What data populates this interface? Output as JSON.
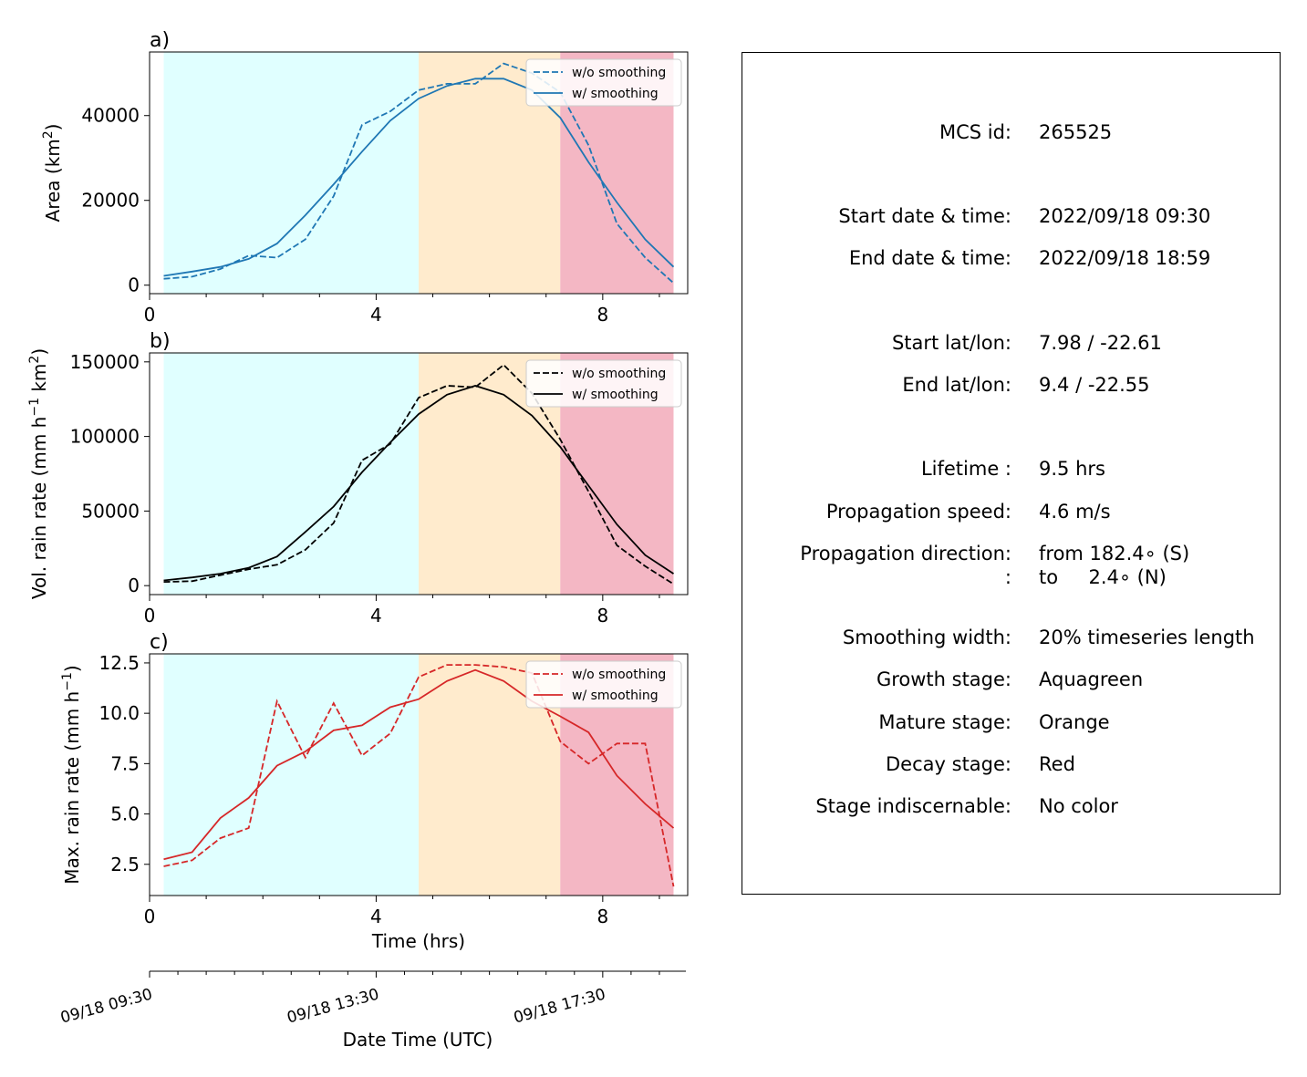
{
  "chart_data": [
    {
      "type": "line",
      "panel_label": "a)",
      "ylabel": "Area  (km",
      "ylabel_sup": "2",
      "ylabel_end": ")",
      "xlim": [
        0,
        9.5
      ],
      "ylim": [
        -2000,
        55000
      ],
      "yticks": [
        0,
        20000,
        40000
      ],
      "ytick_labels": [
        "0",
        "20000",
        "40000"
      ],
      "xticks": [
        0,
        4,
        8
      ],
      "xtick_labels": [
        "0",
        "4",
        "8"
      ],
      "color": "#1f77b4",
      "legend": "top-right",
      "stages": [
        {
          "name": "growth",
          "start": 0.25,
          "end": 4.75,
          "color": "#e0ffff"
        },
        {
          "name": "mature",
          "start": 4.75,
          "end": 7.25,
          "color": "#ffebcd"
        },
        {
          "name": "decay",
          "start": 7.25,
          "end": 9.25,
          "color": "#f4b7c4"
        }
      ],
      "series": [
        {
          "name": "w/o smoothing",
          "style": "dashed",
          "x": [
            0.25,
            0.75,
            1.25,
            1.75,
            2.25,
            2.75,
            3.25,
            3.75,
            4.25,
            4.75,
            5.25,
            5.75,
            6.25,
            6.75,
            7.25,
            7.75,
            8.25,
            8.75,
            9.25
          ],
          "values": [
            1500,
            2000,
            3800,
            7000,
            6500,
            10800,
            21000,
            37800,
            41000,
            46000,
            47500,
            47500,
            52300,
            50000,
            45500,
            33000,
            14500,
            6500,
            500
          ]
        },
        {
          "name": "w/ smoothing",
          "style": "solid",
          "x": [
            0.25,
            0.75,
            1.25,
            1.75,
            2.25,
            2.75,
            3.25,
            3.75,
            4.25,
            4.75,
            5.25,
            5.75,
            6.25,
            6.75,
            7.25,
            7.75,
            8.25,
            8.75,
            9.25
          ],
          "values": [
            2200,
            3200,
            4300,
            6200,
            9800,
            16500,
            23800,
            31500,
            38800,
            44000,
            47000,
            48700,
            48700,
            46000,
            39500,
            29000,
            19500,
            10800,
            4300
          ]
        }
      ]
    },
    {
      "type": "line",
      "panel_label": "b)",
      "ylabel": "Vol. rain rate (mm h",
      "ylabel_sup": "−1",
      "ylabel_mid": " km",
      "ylabel_sup2": "2",
      "ylabel_end": ")",
      "xlim": [
        0,
        9.5
      ],
      "ylim": [
        -6000,
        156000
      ],
      "yticks": [
        0,
        50000,
        100000,
        150000
      ],
      "ytick_labels": [
        "0",
        "50000",
        "100000",
        "150000"
      ],
      "xticks": [
        0,
        4,
        8
      ],
      "xtick_labels": [
        "0",
        "4",
        "8"
      ],
      "color": "#000000",
      "legend": "top-right",
      "stages": [
        {
          "name": "growth",
          "start": 0.25,
          "end": 4.75,
          "color": "#e0ffff"
        },
        {
          "name": "mature",
          "start": 4.75,
          "end": 7.25,
          "color": "#ffebcd"
        },
        {
          "name": "decay",
          "start": 7.25,
          "end": 9.25,
          "color": "#f4b7c4"
        }
      ],
      "series": [
        {
          "name": "w/o smoothing",
          "style": "dashed",
          "x": [
            0.25,
            0.75,
            1.25,
            1.75,
            2.25,
            2.75,
            3.25,
            3.75,
            4.25,
            4.75,
            5.25,
            5.75,
            6.25,
            6.75,
            7.25,
            7.75,
            8.25,
            8.75,
            9.25
          ],
          "values": [
            2500,
            3000,
            7000,
            11000,
            14000,
            24000,
            42000,
            84000,
            95000,
            126000,
            134000,
            133000,
            148000,
            129000,
            98000,
            63000,
            27000,
            13000,
            1000
          ]
        },
        {
          "name": "w/ smoothing",
          "style": "solid",
          "x": [
            0.25,
            0.75,
            1.25,
            1.75,
            2.25,
            2.75,
            3.25,
            3.75,
            4.25,
            4.75,
            5.25,
            5.75,
            6.25,
            6.75,
            7.25,
            7.75,
            8.25,
            8.75,
            9.25
          ],
          "values": [
            3500,
            5500,
            8000,
            12000,
            19500,
            36000,
            53000,
            76000,
            96000,
            115000,
            128000,
            134000,
            128000,
            114000,
            93000,
            67000,
            41000,
            20500,
            8000
          ]
        }
      ]
    },
    {
      "type": "line",
      "panel_label": "c)",
      "ylabel": "Max. rain rate  (mm h",
      "ylabel_sup": "−1",
      "ylabel_end": ")",
      "xlabel": "Time (hrs)",
      "xlim": [
        0,
        9.5
      ],
      "ylim": [
        0.95,
        12.95
      ],
      "yticks": [
        2.5,
        5.0,
        7.5,
        10.0,
        12.5
      ],
      "ytick_labels": [
        "2.5",
        "5.0",
        "7.5",
        "10.0",
        "12.5"
      ],
      "xticks": [
        0,
        4,
        8
      ],
      "xtick_labels": [
        "0",
        "4",
        "8"
      ],
      "color": "#d62728",
      "legend": "top-right",
      "stages": [
        {
          "name": "growth",
          "start": 0.25,
          "end": 4.75,
          "color": "#e0ffff"
        },
        {
          "name": "mature",
          "start": 4.75,
          "end": 7.25,
          "color": "#ffebcd"
        },
        {
          "name": "decay",
          "start": 7.25,
          "end": 9.25,
          "color": "#f4b7c4"
        }
      ],
      "series": [
        {
          "name": "w/o smoothing",
          "style": "dashed",
          "x": [
            0.25,
            0.75,
            1.25,
            1.75,
            2.25,
            2.75,
            3.25,
            3.75,
            4.25,
            4.75,
            5.25,
            5.75,
            6.25,
            6.75,
            7.25,
            7.75,
            8.25,
            8.75,
            9.25
          ],
          "values": [
            2.4,
            2.7,
            3.8,
            4.3,
            10.6,
            7.8,
            10.5,
            7.9,
            9.0,
            11.8,
            12.4,
            12.4,
            12.3,
            12.0,
            8.6,
            7.5,
            8.5,
            8.5,
            1.4
          ]
        },
        {
          "name": "w/ smoothing",
          "style": "solid",
          "x": [
            0.25,
            0.75,
            1.25,
            1.75,
            2.25,
            2.75,
            3.25,
            3.75,
            4.25,
            4.75,
            5.25,
            5.75,
            6.25,
            6.75,
            7.25,
            7.75,
            8.25,
            8.75,
            9.25
          ],
          "values": [
            2.75,
            3.1,
            4.8,
            5.8,
            7.4,
            8.1,
            9.15,
            9.4,
            10.3,
            10.7,
            11.6,
            12.15,
            11.6,
            10.6,
            9.85,
            9.05,
            6.9,
            5.5,
            4.3
          ]
        }
      ]
    }
  ],
  "datetime_axis": {
    "label": "Date Time (UTC)",
    "ticks": [
      {
        "hours": 0,
        "label": "09/18 09:30"
      },
      {
        "hours": 4,
        "label": "09/18 13:30"
      },
      {
        "hours": 8,
        "label": "09/18 17:30"
      }
    ],
    "minor_ticks_hours": [
      0.5,
      1,
      1.5,
      2,
      2.5,
      3,
      3.5,
      4.5,
      5,
      5.5,
      6,
      6.5,
      7,
      7.5,
      8.5,
      9,
      9.5
    ]
  },
  "info": {
    "rows": [
      {
        "key": "mcs-id",
        "label": "MCS id:",
        "value": "265525"
      },
      {
        "key": "start-datetime",
        "label": "Start date & time:",
        "value": "2022/09/18 09:30"
      },
      {
        "key": "end-datetime",
        "label": "End date & time:",
        "value": "2022/09/18 18:59"
      },
      {
        "key": "start-latlon",
        "label": "Start lat/lon:",
        "value": "7.98 / -22.61"
      },
      {
        "key": "end-latlon",
        "label": "End lat/lon:",
        "value": "9.4 / -22.55"
      },
      {
        "key": "lifetime",
        "label": "Lifetime :",
        "value": "9.5 hrs"
      },
      {
        "key": "propagation-speed",
        "label": "Propagation speed:",
        "value": "4.6 m/s"
      },
      {
        "key": "propagation-direction",
        "label": "Propagation direction:",
        "value": "from 182.4∘ (S)"
      },
      {
        "key": "propagation-direction-to",
        "label": ":",
        "value": "to     2.4∘ (N)"
      },
      {
        "key": "smoothing-width",
        "label": "Smoothing width:",
        "value": "20% timeseries length"
      },
      {
        "key": "growth-stage",
        "label": "Growth stage:",
        "value": "Aquagreen"
      },
      {
        "key": "mature-stage",
        "label": "Mature stage:",
        "value": "Orange"
      },
      {
        "key": "decay-stage",
        "label": "Decay stage:",
        "value": "Red"
      },
      {
        "key": "stage-indiscernable",
        "label": "Stage indiscernable:",
        "value": "No color"
      }
    ]
  }
}
